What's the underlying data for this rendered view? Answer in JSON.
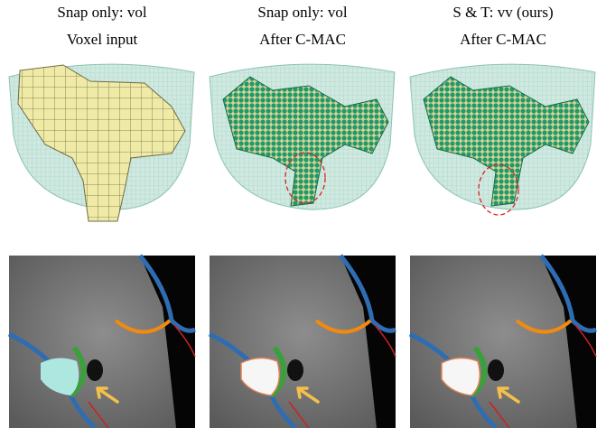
{
  "panels": [
    {
      "title": "Snap only: vol",
      "subtitle": "Voxel input"
    },
    {
      "title": "Snap only: vol",
      "subtitle": "After C-MAC"
    },
    {
      "title": "S & T: vv (ours)",
      "subtitle": "After C-MAC"
    }
  ]
}
